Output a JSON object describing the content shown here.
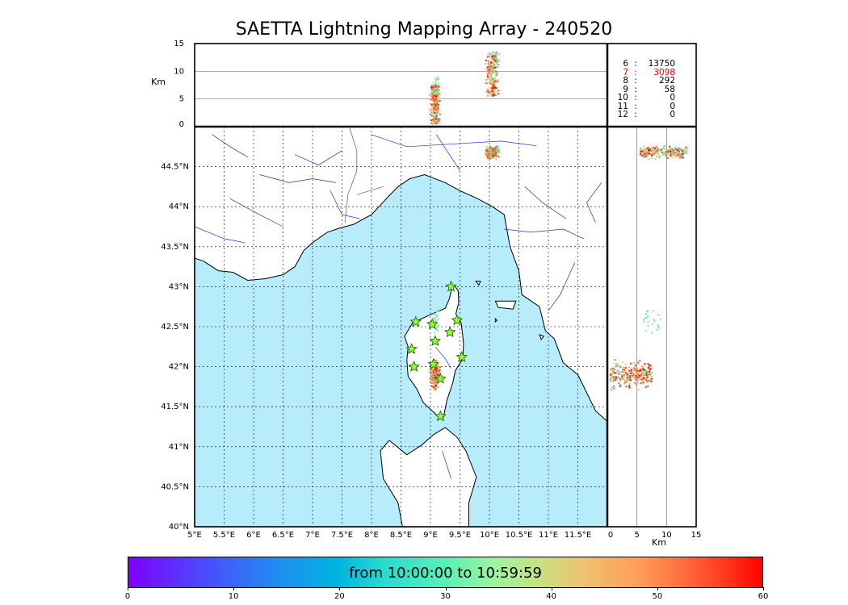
{
  "title": "SAETTA Lightning Mapping Array - 240520",
  "colors": {
    "sea": "#b7ecfb",
    "land": "#ffffff",
    "coast": "#000000",
    "rivers": "#2a2ad8",
    "borders": "#555555",
    "station_fill": "#8cff3c",
    "station_edge": "#2f6000",
    "highlight_count": "#ff0000"
  },
  "chart_data": {
    "type": "scatter",
    "map": {
      "lon_range": [
        5.0,
        12.0
      ],
      "lat_range": [
        40.0,
        45.0
      ],
      "lon_ticks": [
        "5°E",
        "5.5°E",
        "6°E",
        "6.5°E",
        "7°E",
        "7.5°E",
        "8°E",
        "8.5°E",
        "9°E",
        "9.5°E",
        "10°E",
        "10.5°E",
        "11°E",
        "11.5°E"
      ],
      "lat_ticks": [
        "40°N",
        "40.5°N",
        "41°N",
        "41.5°N",
        "42°N",
        "42.5°N",
        "43°N",
        "43.5°N",
        "44°N",
        "44.5°N"
      ],
      "grid": true
    },
    "altitude_panel": {
      "ylabel": "Km",
      "ylim": [
        0,
        15
      ],
      "yticks": [
        "0",
        "5",
        "10",
        "15"
      ]
    },
    "side_panel": {
      "xlabel": "Km",
      "xlim": [
        0,
        15
      ],
      "xticks": [
        "0",
        "5",
        "10",
        "15"
      ]
    },
    "colorbar": {
      "label": "from 10:00:00 to 10:59:59",
      "range": [
        0,
        60
      ],
      "ticks": [
        "0",
        "10",
        "20",
        "30",
        "40",
        "50",
        "60"
      ]
    },
    "stations": [
      {
        "lon": 9.35,
        "lat": 43.0
      },
      {
        "lon": 8.75,
        "lat": 42.56
      },
      {
        "lon": 9.03,
        "lat": 42.53
      },
      {
        "lon": 9.45,
        "lat": 42.58
      },
      {
        "lon": 9.33,
        "lat": 42.43
      },
      {
        "lon": 9.08,
        "lat": 42.32
      },
      {
        "lon": 8.68,
        "lat": 42.22
      },
      {
        "lon": 9.53,
        "lat": 42.12
      },
      {
        "lon": 8.72,
        "lat": 42.0
      },
      {
        "lon": 9.05,
        "lat": 42.03
      },
      {
        "lon": 9.17,
        "lat": 41.85
      },
      {
        "lon": 9.17,
        "lat": 41.38
      }
    ],
    "clusters": [
      {
        "lon": 9.08,
        "lat": 41.9,
        "lon_spread": 0.1,
        "lat_spread": 0.22,
        "alt_min": 0.5,
        "alt_max": 7.5,
        "time_min": 15,
        "time_max": 60,
        "count": 260
      },
      {
        "lon": 10.05,
        "lat": 44.68,
        "lon_spread": 0.15,
        "lat_spread": 0.1,
        "alt_min": 5.5,
        "alt_max": 13.5,
        "time_min": 10,
        "time_max": 60,
        "count": 240
      },
      {
        "lon": 9.1,
        "lat": 42.6,
        "lon_spread": 0.08,
        "lat_spread": 0.25,
        "alt_min": 6.0,
        "alt_max": 9.0,
        "time_min": 22,
        "time_max": 38,
        "count": 25
      }
    ],
    "flash_counts": [
      {
        "level": "6",
        "count": "13750"
      },
      {
        "level": "7",
        "count": "3098",
        "highlight": true
      },
      {
        "level": "8",
        "count": "292"
      },
      {
        "level": "9",
        "count": "58"
      },
      {
        "level": "10",
        "count": "0"
      },
      {
        "level": "11",
        "count": "0"
      },
      {
        "level": "12",
        "count": "0"
      }
    ]
  }
}
